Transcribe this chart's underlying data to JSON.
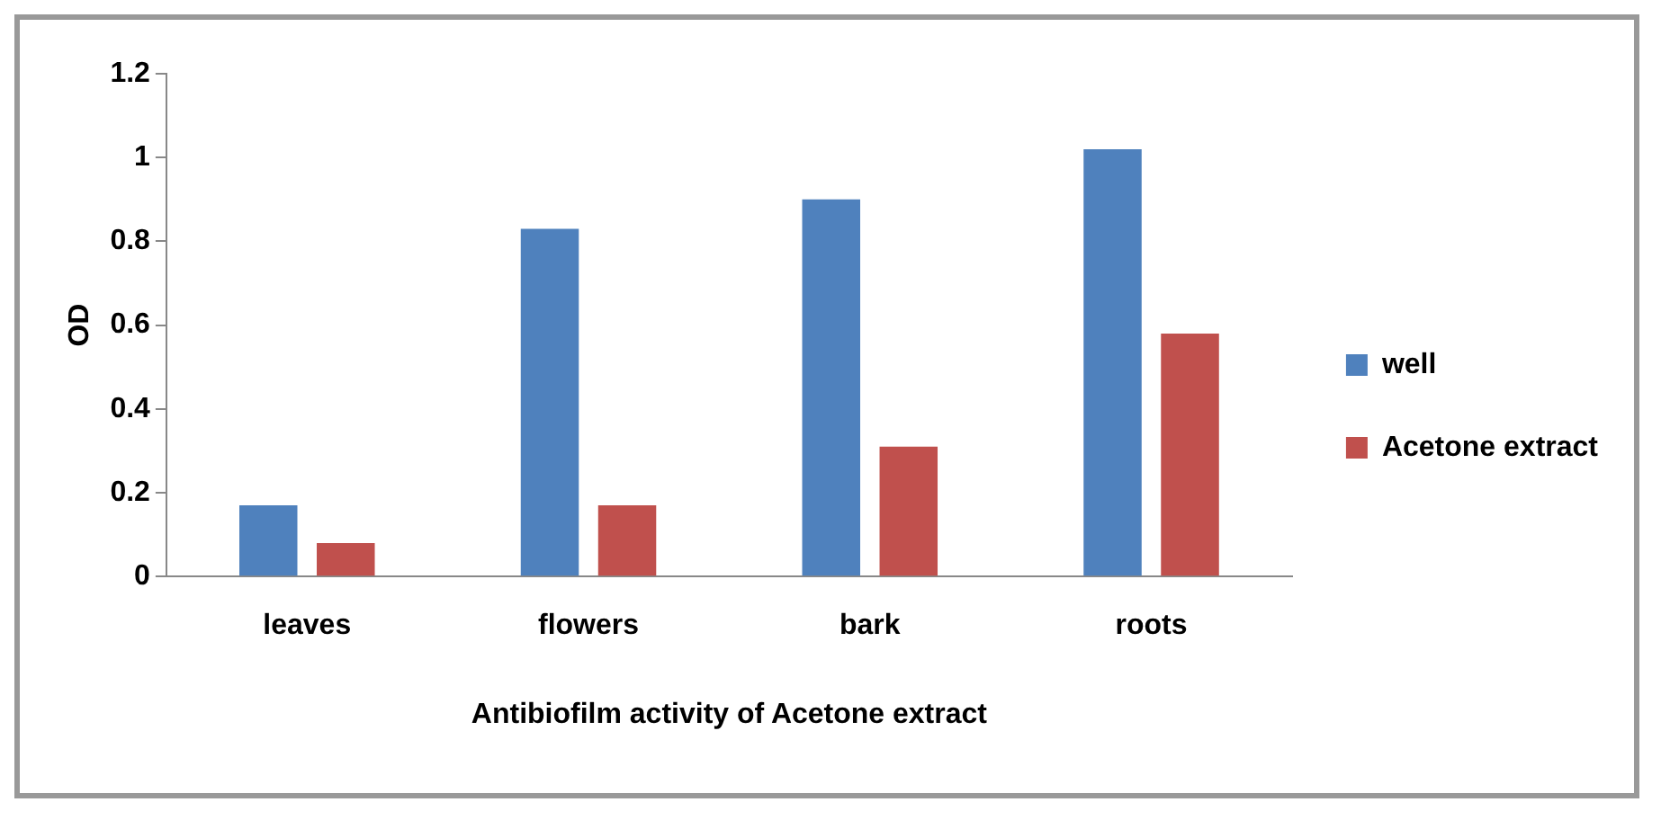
{
  "chart_data": {
    "type": "bar",
    "xlabel": "Antibiofilm activity of Acetone extract",
    "ylabel": "OD",
    "categories": [
      "leaves",
      "flowers",
      "bark",
      "roots"
    ],
    "series": [
      {
        "name": "well",
        "color": "#4f81bd",
        "values": [
          0.17,
          0.83,
          0.9,
          1.02
        ]
      },
      {
        "name": "Acetone extract",
        "color": "#c0504d",
        "values": [
          0.08,
          0.17,
          0.31,
          0.58
        ]
      }
    ],
    "ylim": [
      0,
      1.2
    ],
    "yticks": [
      0,
      0.2,
      0.4,
      0.6,
      0.8,
      1,
      1.2
    ],
    "grid": false,
    "legend": "right"
  }
}
